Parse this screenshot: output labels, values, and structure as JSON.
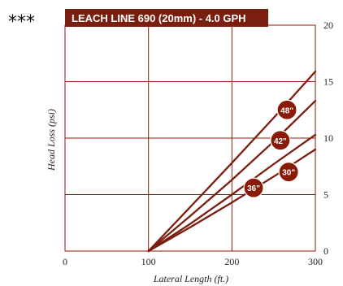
{
  "chart_data": {
    "type": "line",
    "title": "LEACH LINE 690 (20mm) - 4.0 GPH",
    "title_prefix": "***",
    "xlabel": "Lateral Length (ft.)",
    "ylabel": "Head Loss (psi)",
    "xlim": [
      0,
      300
    ],
    "ylim": [
      0,
      20
    ],
    "x_ticks": [
      0,
      100,
      200,
      300
    ],
    "y_ticks": [
      0,
      5,
      10,
      15,
      20
    ],
    "y_axis_position": "right",
    "grid": true,
    "series": [
      {
        "name": "48\"",
        "x": [
          100,
          150,
          200,
          250,
          300
        ],
        "y": [
          0,
          3.9,
          7.8,
          11.8,
          15.9
        ]
      },
      {
        "name": "42\"",
        "x": [
          100,
          150,
          200,
          250,
          300
        ],
        "y": [
          0,
          3.1,
          6.3,
          9.7,
          13.3
        ]
      },
      {
        "name": "30\"",
        "x": [
          100,
          150,
          200,
          250,
          300
        ],
        "y": [
          0,
          2.4,
          5.0,
          7.7,
          10.3
        ]
      },
      {
        "name": "36\"",
        "x": [
          100,
          150,
          200,
          250,
          300
        ],
        "y": [
          0,
          2.1,
          4.3,
          6.6,
          9.0
        ]
      }
    ],
    "labels": [
      {
        "text": "48\"",
        "x": 266,
        "y": 12.5
      },
      {
        "text": "42\"",
        "x": 258,
        "y": 9.8
      },
      {
        "text": "30\"",
        "x": 268,
        "y": 7.0
      },
      {
        "text": "36\"",
        "x": 226,
        "y": 5.6
      }
    ],
    "colors": {
      "line": "#7a1f0f",
      "title_bg": "#7a1f0f",
      "badge": "#8a1a08",
      "grid": "#8a1a08"
    }
  }
}
